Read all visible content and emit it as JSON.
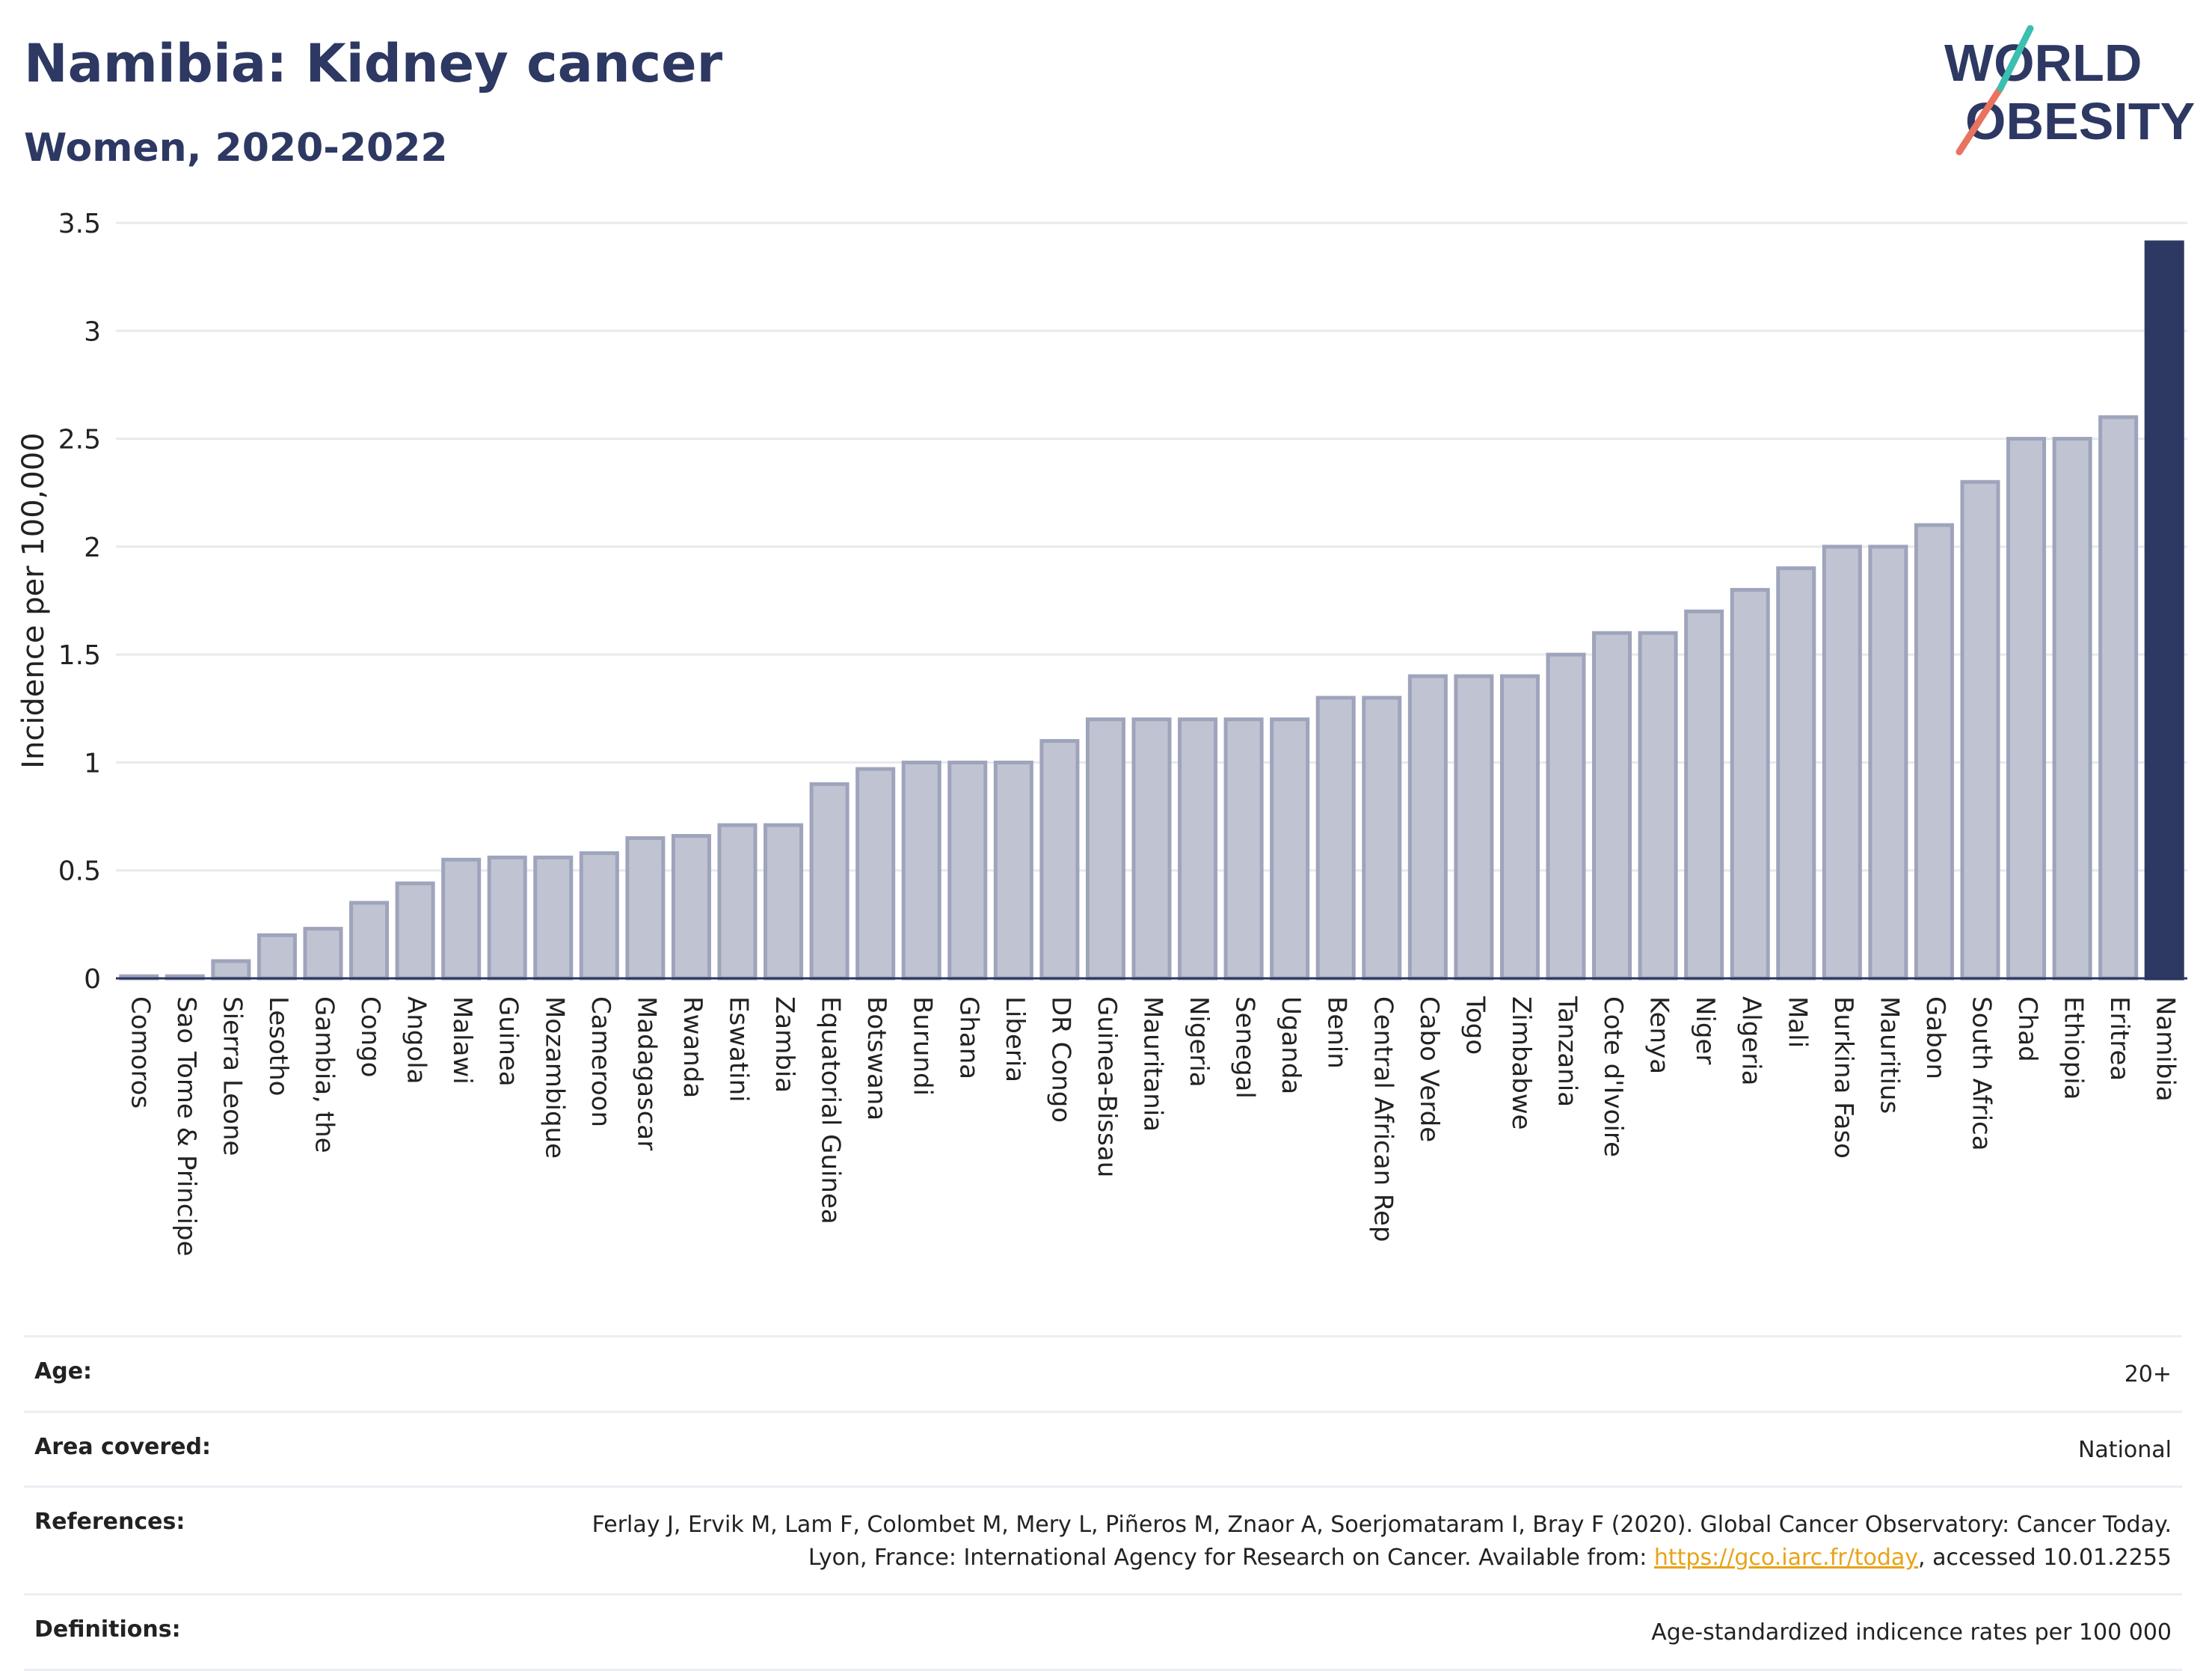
{
  "header": {
    "title": "Namibia: Kidney cancer",
    "subtitle": "Women, 2020-2022"
  },
  "logo": {
    "line1": "WORLD",
    "line2": "OBESITY"
  },
  "chart_data": {
    "type": "bar",
    "ylabel": "Incidence per 100,000",
    "ylim": [
      0,
      3.5
    ],
    "yticks": [
      "0",
      "0.5",
      "1",
      "1.5",
      "2",
      "2.5",
      "3",
      "3.5"
    ],
    "grid": true,
    "highlight": "Namibia",
    "colors": {
      "bar": "#c0c4d2",
      "bar_stroke": "#9ea4bb",
      "highlight": "#2d3863",
      "grid": "#e8e9ee"
    },
    "categories": [
      "Comoros",
      "Sao Tome & Principe",
      "Sierra Leone",
      "Lesotho",
      "Gambia, the",
      "Congo",
      "Angola",
      "Malawi",
      "Guinea",
      "Mozambique",
      "Cameroon",
      "Madagascar",
      "Rwanda",
      "Eswatini",
      "Zambia",
      "Equatorial Guinea",
      "Botswana",
      "Burundi",
      "Ghana",
      "Liberia",
      "DR Congo",
      "Guinea-Bissau",
      "Mauritania",
      "Nigeria",
      "Senegal",
      "Uganda",
      "Benin",
      "Central African Rep",
      "Cabo Verde",
      "Togo",
      "Zimbabwe",
      "Tanzania",
      "Cote d'Ivoire",
      "Kenya",
      "Niger",
      "Algeria",
      "Mali",
      "Burkina Faso",
      "Mauritius",
      "Gabon",
      "South Africa",
      "Chad",
      "Ethiopia",
      "Eritrea",
      "Namibia"
    ],
    "values": [
      0.01,
      0.01,
      0.08,
      0.2,
      0.23,
      0.35,
      0.44,
      0.55,
      0.56,
      0.56,
      0.58,
      0.65,
      0.66,
      0.71,
      0.71,
      0.9,
      0.97,
      1.0,
      1.0,
      1.0,
      1.1,
      1.2,
      1.2,
      1.2,
      1.2,
      1.2,
      1.3,
      1.3,
      1.4,
      1.4,
      1.4,
      1.5,
      1.6,
      1.6,
      1.7,
      1.8,
      1.9,
      2.0,
      2.0,
      2.1,
      2.3,
      2.5,
      2.5,
      2.6,
      3.41
    ]
  },
  "info": {
    "age_label": "Age:",
    "age_value": "20+",
    "area_label": "Area covered:",
    "area_value": "National",
    "references_label": "References:",
    "references_text": "Ferlay J, Ervik M, Lam F, Colombet M, Mery L, Piñeros M, Znaor A, Soerjomataram I, Bray F (2020). Global Cancer Observatory: Cancer Today. Lyon, France: International Agency for Research on Cancer. Available from: ",
    "references_link": "https://gco.iarc.fr/today",
    "references_suffix": ", accessed 10.01.2255",
    "definitions_label": "Definitions:",
    "definitions_value": "Age-standardized indicence rates per 100 000"
  }
}
